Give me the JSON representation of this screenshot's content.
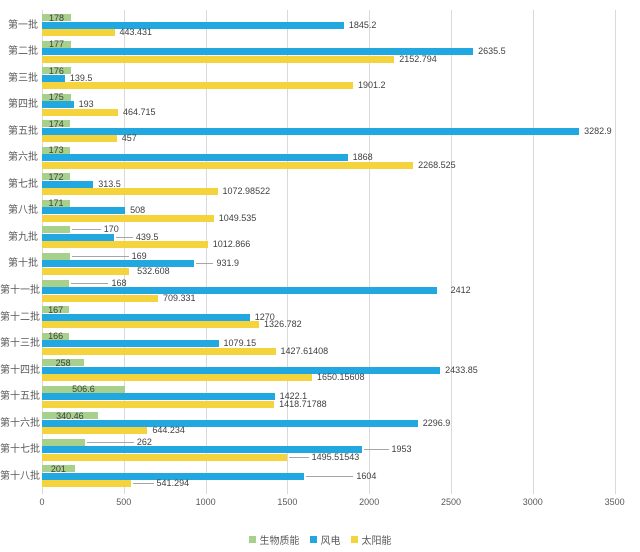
{
  "chart_data": {
    "type": "bar",
    "orientation": "horizontal",
    "title": "",
    "xlabel": "",
    "ylabel": "",
    "categories": [
      "第一批",
      "第二批",
      "第三批",
      "第四批",
      "第五批",
      "第六批",
      "第七批",
      "第八批",
      "第九批",
      "第十批",
      "第十一批",
      "第十二批",
      "第十三批",
      "第十四批",
      "第十五批",
      "第十六批",
      "第十七批",
      "第十八批"
    ],
    "series": [
      {
        "name": "生物质能",
        "color": "#a8d08d",
        "values": [
          178,
          177,
          176,
          175,
          174,
          173,
          172,
          171,
          170,
          169,
          168,
          167,
          166,
          258,
          506.6,
          340.46,
          262,
          201
        ]
      },
      {
        "name": "风电",
        "color": "#22a8e0",
        "values": [
          1845.2,
          2635.5,
          139.5,
          193,
          3282.9,
          1868,
          313.5,
          508,
          439.5,
          931.9,
          2412,
          1270,
          1079.15,
          2433.85,
          1422.1,
          2296.9,
          1953,
          1604
        ]
      },
      {
        "name": "太阳能",
        "color": "#f5d33c",
        "values": [
          443.431,
          2152.794,
          1901.2,
          464.715,
          457,
          2268.525,
          1072.98522,
          1049.535,
          1012.866,
          532.608,
          709.331,
          1326.782,
          1427.61408,
          1650.15608,
          1418.71788,
          644.234,
          1495.51543,
          541.294
        ]
      }
    ],
    "xlim": [
      0,
      3500
    ],
    "xticks": [
      "0",
      "500",
      "1000",
      "1500",
      "2000",
      "2500",
      "3000",
      "3500"
    ],
    "grid": true,
    "legend_position": "bottom",
    "value_labels": true,
    "label_modes": {
      "series_default": [
        "inside",
        "outside",
        "outside"
      ],
      "overrides": [
        {
          "series": 0,
          "index": 8,
          "mode": "callout",
          "dx": 34
        },
        {
          "series": 0,
          "index": 9,
          "mode": "callout",
          "dx": 62
        },
        {
          "series": 0,
          "index": 10,
          "mode": "callout",
          "dx": 42
        },
        {
          "series": 0,
          "index": 16,
          "mode": "callout",
          "dx": 52
        },
        {
          "series": 1,
          "index": 8,
          "mode": "callout",
          "dx": 22
        },
        {
          "series": 1,
          "index": 9,
          "mode": "callout",
          "dx": 22
        },
        {
          "series": 1,
          "index": 10,
          "mode": "offset",
          "dx": 14
        },
        {
          "series": 1,
          "index": 16,
          "mode": "callout",
          "dx": 30
        },
        {
          "series": 1,
          "index": 17,
          "mode": "callout",
          "dx": 52
        },
        {
          "series": 2,
          "index": 9,
          "mode": "offset",
          "dx": 8
        },
        {
          "series": 2,
          "index": 16,
          "mode": "callout",
          "dx": 25
        },
        {
          "series": 2,
          "index": 17,
          "mode": "callout",
          "dx": 26
        }
      ]
    },
    "colors": {
      "gridline": "#d9d9d9",
      "leader_line": "#a6a6a6",
      "value_label_text": "#404040",
      "axis_text": "#595959"
    }
  }
}
